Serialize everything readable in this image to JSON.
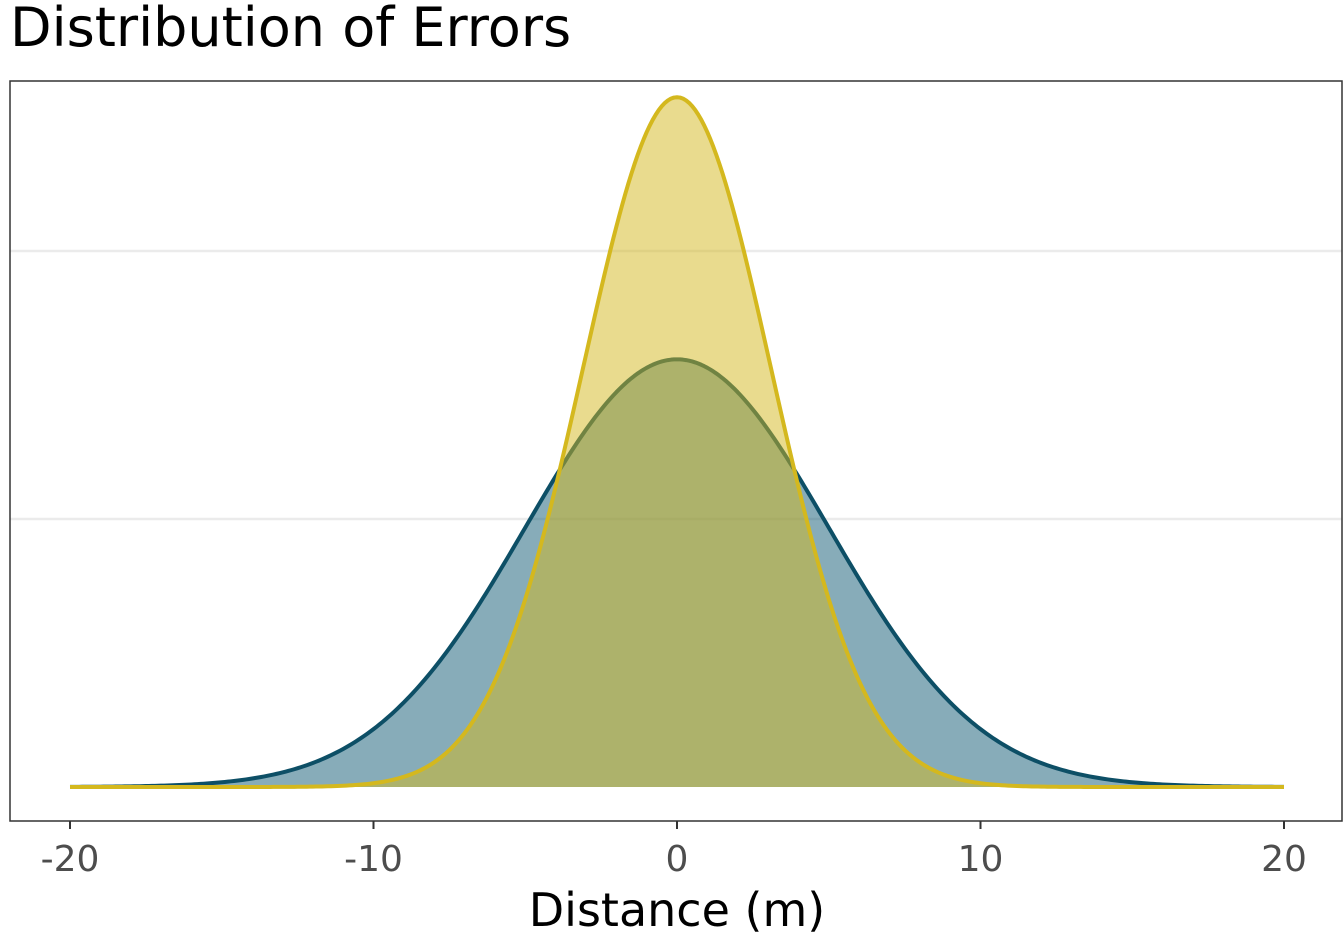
{
  "chart_data": {
    "type": "area",
    "title": "Distribution of Errors",
    "xlabel": "Distance (m)",
    "ylabel": "",
    "xlim": [
      -20,
      20
    ],
    "ylim": [
      0,
      0.128
    ],
    "x_ticks": [
      -20,
      -10,
      0,
      10,
      20
    ],
    "x_tick_labels": [
      "-20",
      "-10",
      "0",
      "10",
      "20"
    ],
    "y_gridlines": [
      0.05,
      0.1
    ],
    "y_tick_labels_visible": false,
    "grid": "horizontal-major",
    "legend": "none",
    "series": [
      {
        "distribution": "normal",
        "mean": 0,
        "sd": 5,
        "x_range": [
          -20,
          20
        ],
        "fill_color": "#0f5a73",
        "fill_opacity": 0.5,
        "line_color": "#0d4f66"
      },
      {
        "distribution": "normal",
        "mean": 0,
        "sd": 3.1,
        "x_range": [
          -20,
          20
        ],
        "fill_color": "#d4b81e",
        "fill_opacity": 0.5,
        "line_color": "#d4b81e"
      }
    ]
  },
  "colors": {
    "background": "#ffffff",
    "panel_border": "#333333",
    "gridline": "#ebebeb",
    "tick_mark": "#333333",
    "tick_label": "#4d4d4d"
  }
}
